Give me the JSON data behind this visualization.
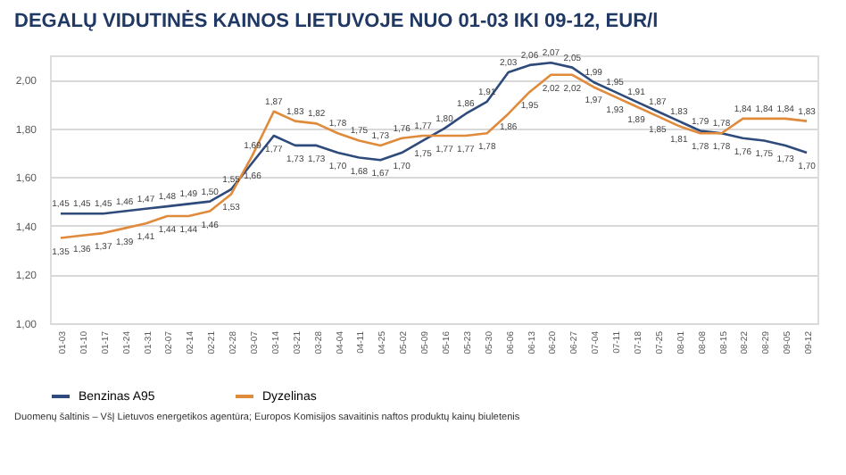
{
  "chart_data": {
    "type": "line",
    "title": "DEGALŲ VIDUTINĖS KAINOS LIETUVOJE NUO 01-03 IKI 09-12, EUR/l",
    "categories": [
      "01-03",
      "01-10",
      "01-17",
      "01-24",
      "01-31",
      "02-07",
      "02-14",
      "02-21",
      "02-28",
      "03-07",
      "03-14",
      "03-21",
      "03-28",
      "04-04",
      "04-11",
      "04-25",
      "05-02",
      "05-09",
      "05-16",
      "05-23",
      "05-30",
      "06-06",
      "06-13",
      "06-20",
      "06-27",
      "07-04",
      "07-11",
      "07-18",
      "07-25",
      "08-01",
      "08-08",
      "08-15",
      "08-22",
      "08-29",
      "09-05",
      "09-12"
    ],
    "series": [
      {
        "name": "Benzinas A95",
        "color": "#2f4b7c",
        "values": [
          1.45,
          1.45,
          1.45,
          1.46,
          1.47,
          1.48,
          1.49,
          1.5,
          1.55,
          1.66,
          1.77,
          1.73,
          1.73,
          1.7,
          1.68,
          1.67,
          1.7,
          1.75,
          1.8,
          1.86,
          1.91,
          2.03,
          2.06,
          2.07,
          2.05,
          1.99,
          1.95,
          1.91,
          1.87,
          1.83,
          1.79,
          1.78,
          1.76,
          1.75,
          1.73,
          1.7
        ],
        "value_labels": [
          "1,45",
          "1,45",
          "1,45",
          "1,46",
          "1,47",
          "1,48",
          "1,49",
          "1,50",
          "1,55",
          "1,66",
          "1,77",
          "1,73",
          "1,73",
          "1,70",
          "1,68",
          "1,67",
          "1,70",
          "1,75",
          "1,80",
          "1,86",
          "1,91",
          "2,03",
          "2,06",
          "2,07",
          "2,05",
          "1,99",
          "1,95",
          "1,91",
          "1,87",
          "1,83",
          "1,79",
          "1,78",
          "1,76",
          "1,75",
          "1,73",
          "1,70"
        ]
      },
      {
        "name": "Dyzelinas",
        "color": "#e08a3c",
        "values": [
          1.35,
          1.36,
          1.37,
          1.39,
          1.41,
          1.44,
          1.44,
          1.46,
          1.53,
          1.69,
          1.87,
          1.83,
          1.82,
          1.78,
          1.75,
          1.73,
          1.76,
          1.77,
          1.77,
          1.77,
          1.78,
          1.86,
          1.95,
          2.02,
          2.02,
          1.97,
          1.93,
          1.89,
          1.85,
          1.81,
          1.78,
          1.78,
          1.84,
          1.84,
          1.84,
          1.83
        ],
        "value_labels": [
          "1,35",
          "1,36",
          "1,37",
          "1,39",
          "1,41",
          "1,44",
          "1,44",
          "1,46",
          "1,53",
          "1,69",
          "1,87",
          "1,83",
          "1,82",
          "1,78",
          "1,75",
          "1,73",
          "1,76",
          "1,77",
          "1,77",
          "1,77",
          "1,78",
          "1,86",
          "1,95",
          "2,02",
          "2,02",
          "1,97",
          "1,93",
          "1,89",
          "1,85",
          "1,81",
          "1,78",
          "1,78",
          "1,84",
          "1,84",
          "1,84",
          "1,83"
        ]
      }
    ],
    "ylim": [
      1.0,
      2.1
    ],
    "yticks": [
      {
        "value": 1.0,
        "label": "1,00"
      },
      {
        "value": 1.2,
        "label": "1,20"
      },
      {
        "value": 1.4,
        "label": "1,40"
      },
      {
        "value": 1.6,
        "label": "1,60"
      },
      {
        "value": 1.8,
        "label": "1,80"
      },
      {
        "value": 2.0,
        "label": "2,00"
      }
    ],
    "grid": "y",
    "legend": "bottom",
    "marker": "none",
    "line_style": "solid",
    "annotations": [
      "Duomenų šaltinis – VšĮ Lietuvos energetikos agentūra; Europos Komisijos savaitinis naftos produktų kainų biuletenis"
    ]
  }
}
